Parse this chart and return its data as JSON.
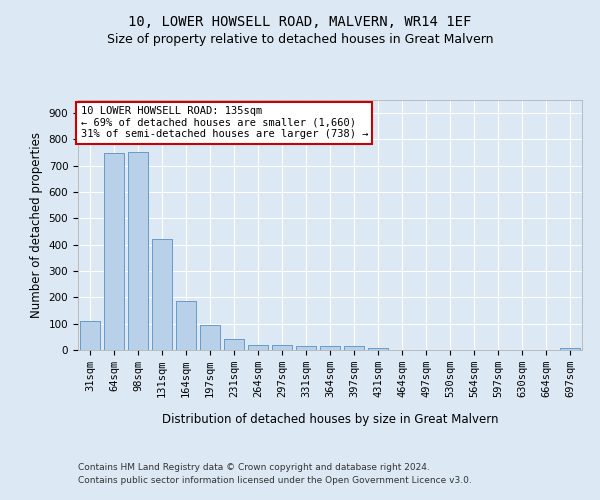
{
  "title": "10, LOWER HOWSELL ROAD, MALVERN, WR14 1EF",
  "subtitle": "Size of property relative to detached houses in Great Malvern",
  "xlabel": "Distribution of detached houses by size in Great Malvern",
  "ylabel": "Number of detached properties",
  "categories": [
    "31sqm",
    "64sqm",
    "98sqm",
    "131sqm",
    "164sqm",
    "197sqm",
    "231sqm",
    "264sqm",
    "297sqm",
    "331sqm",
    "364sqm",
    "397sqm",
    "431sqm",
    "464sqm",
    "497sqm",
    "530sqm",
    "564sqm",
    "597sqm",
    "630sqm",
    "664sqm",
    "697sqm"
  ],
  "values": [
    110,
    748,
    752,
    420,
    188,
    96,
    42,
    20,
    20,
    16,
    16,
    14,
    8,
    0,
    0,
    0,
    0,
    0,
    0,
    0,
    8
  ],
  "bar_color": "#b8d0e8",
  "bar_edge_color": "#6699cc",
  "annotation_box_text": "10 LOWER HOWSELL ROAD: 135sqm\n← 69% of detached houses are smaller (1,660)\n31% of semi-detached houses are larger (738) →",
  "annotation_box_color": "#ffffff",
  "annotation_box_edge_color": "#cc0000",
  "ylim": [
    0,
    950
  ],
  "yticks": [
    0,
    100,
    200,
    300,
    400,
    500,
    600,
    700,
    800,
    900
  ],
  "background_color": "#dce9f5",
  "plot_bg_color": "#dce9f5",
  "footer_line1": "Contains HM Land Registry data © Crown copyright and database right 2024.",
  "footer_line2": "Contains public sector information licensed under the Open Government Licence v3.0.",
  "title_fontsize": 10,
  "subtitle_fontsize": 9,
  "xlabel_fontsize": 8.5,
  "ylabel_fontsize": 8.5,
  "tick_fontsize": 7.5,
  "ann_fontsize": 7.5
}
